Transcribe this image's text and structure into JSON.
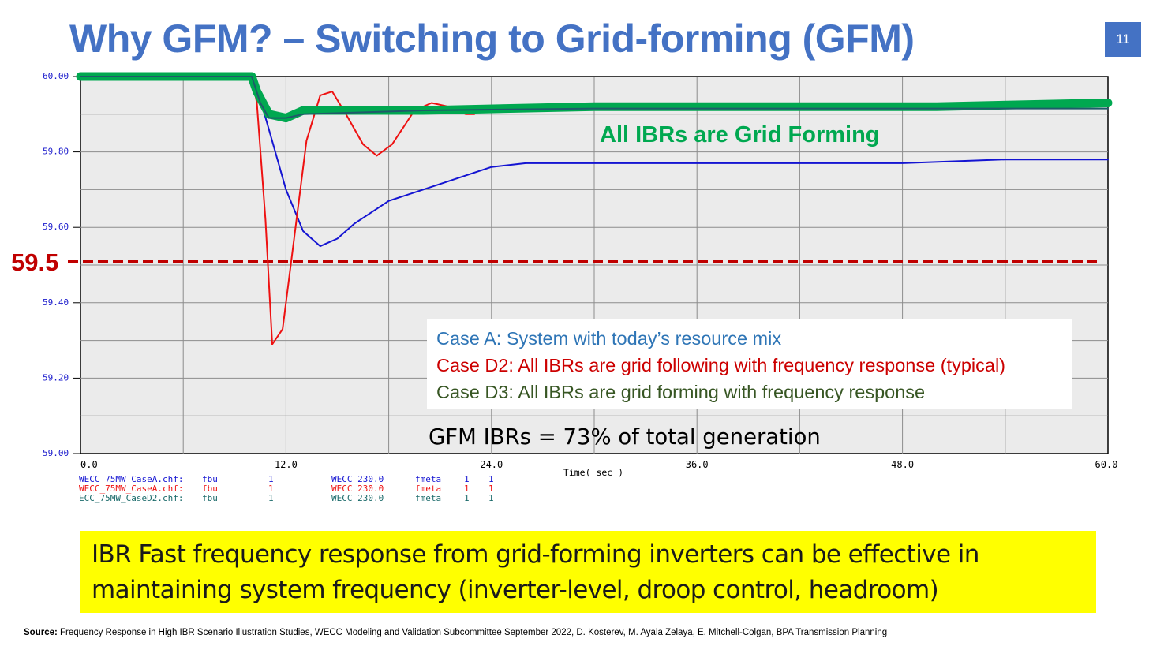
{
  "slide": {
    "title": "Why GFM? – Switching to Grid-forming (GFM)",
    "page_number": "11",
    "callout": "IBR Fast frequency response from grid-forming inverters can be effective in maintaining system frequency (inverter-level, droop control, headroom)",
    "source_label": "Source:",
    "source_text": "Frequency Response in High IBR Scenario Illustration Studies, WECC Modeling and Validation Subcommittee September 2022, D. Kosterev, M. Ayala Zelaya, E. Mitchell-Colgan, BPA Transmission Planning"
  },
  "chart_data": {
    "type": "line",
    "xlabel": "Time( sec )",
    "xlim": [
      0,
      60
    ],
    "ylim": [
      59.0,
      60.0
    ],
    "x_ticks": [
      "0.0",
      "12.0",
      "24.0",
      "36.0",
      "48.0",
      "60.0"
    ],
    "y_ticks": [
      "60.00",
      "59.80",
      "59.60",
      "59.40",
      "59.20",
      "59.00"
    ],
    "grid": true,
    "series": [
      {
        "color": "#1414d2",
        "points": [
          [
            0,
            60.0
          ],
          [
            10,
            60.0
          ],
          [
            10.3,
            59.97
          ],
          [
            11,
            59.86
          ],
          [
            12,
            59.7
          ],
          [
            13,
            59.59
          ],
          [
            14,
            59.55
          ],
          [
            15,
            59.57
          ],
          [
            16,
            59.61
          ],
          [
            18,
            59.67
          ],
          [
            20,
            59.7
          ],
          [
            22,
            59.73
          ],
          [
            24,
            59.76
          ],
          [
            26,
            59.77
          ],
          [
            30,
            59.77
          ],
          [
            36,
            59.77
          ],
          [
            42,
            59.77
          ],
          [
            48,
            59.77
          ],
          [
            54,
            59.78
          ],
          [
            60,
            59.78
          ]
        ]
      },
      {
        "color": "#ee1111",
        "points": [
          [
            0,
            60.0
          ],
          [
            10,
            60.0
          ],
          [
            10.3,
            59.93
          ],
          [
            10.8,
            59.62
          ],
          [
            11.2,
            59.29
          ],
          [
            11.8,
            59.33
          ],
          [
            12.5,
            59.58
          ],
          [
            13.2,
            59.83
          ],
          [
            14,
            59.95
          ],
          [
            14.7,
            59.96
          ],
          [
            15.5,
            59.9
          ],
          [
            16.5,
            59.82
          ],
          [
            17.3,
            59.79
          ],
          [
            18.2,
            59.82
          ],
          [
            19.5,
            59.91
          ],
          [
            20.5,
            59.93
          ],
          [
            21.5,
            59.92
          ],
          [
            22.5,
            59.9
          ],
          [
            23,
            59.9
          ]
        ]
      },
      {
        "color": "#00a850",
        "points": [
          [
            0,
            60.0
          ],
          [
            10,
            60.0
          ],
          [
            10.3,
            59.96
          ],
          [
            11,
            59.9
          ],
          [
            12,
            59.89
          ],
          [
            13,
            59.91
          ],
          [
            20,
            59.91
          ],
          [
            30,
            59.92
          ],
          [
            40,
            59.92
          ],
          [
            50,
            59.92
          ],
          [
            60,
            59.93
          ]
        ]
      },
      {
        "color": "#1f5a6a",
        "points": [
          [
            0,
            60.0
          ],
          [
            10,
            60.0
          ],
          [
            10.5,
            59.93
          ],
          [
            11,
            59.89
          ],
          [
            12,
            59.89
          ],
          [
            13,
            59.9
          ],
          [
            20,
            59.91
          ],
          [
            30,
            59.915
          ],
          [
            40,
            59.915
          ],
          [
            50,
            59.915
          ],
          [
            60,
            59.915
          ]
        ]
      }
    ],
    "threshold": {
      "value": 59.51,
      "label": "59.5",
      "color": "#c00000"
    },
    "annotation": "All IBRs are Grid Forming",
    "legend": [
      {
        "text": "Case A: System with today’s resource mix",
        "color": "#2e75b6"
      },
      {
        "text": "Case D2: All IBRs are grid following with frequency response (typical)",
        "color": "#cc0000"
      },
      {
        "text": "Case D3: All IBRs are grid forming with frequency response",
        "color": "#375623"
      }
    ],
    "gen_note": "GFM IBRs = 73% of total generation",
    "file_labels": [
      {
        "file": "WECC_75MW_CaseA.chf:",
        "param": "fbu",
        "n1": "1",
        "bus": "WECC 230.0",
        "type": "fmeta",
        "a": "1",
        "b": "1",
        "color": "#1414d2"
      },
      {
        "file": "WECC_75MW_CaseA.chf:",
        "param": "fbu",
        "n1": "1",
        "bus": "WECC 230.0",
        "type": "fmeta",
        "a": "1",
        "b": "1",
        "color": "#ee1111"
      },
      {
        "file": "ECC_75MW_CaseD2.chf:",
        "param": "fbu",
        "n1": "1",
        "bus": "WECC 230.0",
        "type": "fmeta",
        "a": "1",
        "b": "1",
        "color": "#1a6a6a"
      }
    ]
  }
}
